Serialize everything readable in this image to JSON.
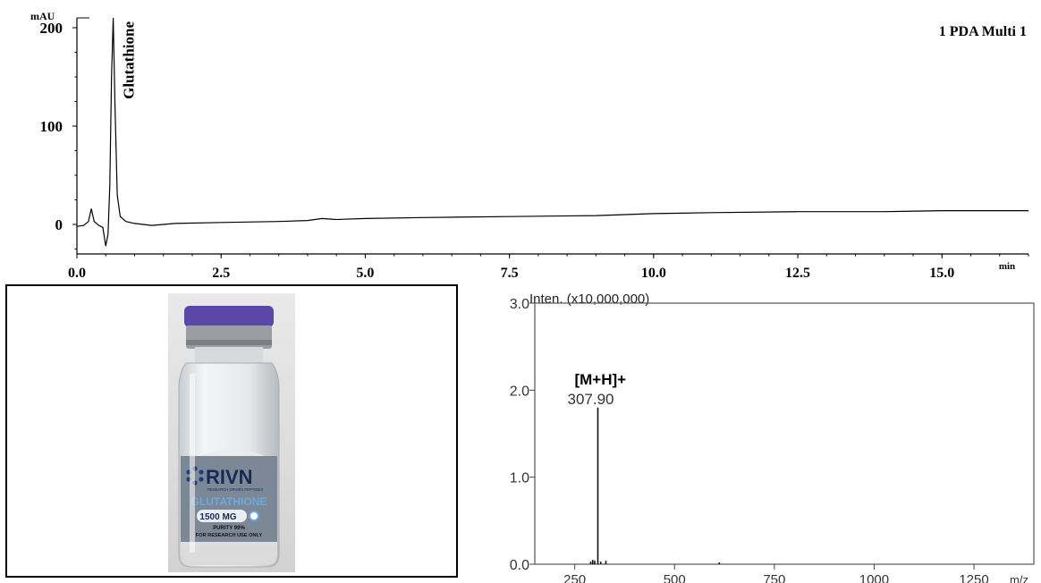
{
  "chart_data": [
    {
      "type": "line",
      "ylabel": "mAU",
      "xlabel": "min",
      "legend": "1 PDA Multi 1",
      "xlim": [
        0,
        16.5
      ],
      "ylim": [
        -30,
        210
      ],
      "x_ticks": [
        "0.0",
        "2.5",
        "5.0",
        "7.5",
        "10.0",
        "12.5",
        "15.0"
      ],
      "y_ticks": [
        "0",
        "100",
        "200"
      ],
      "annotations": [
        {
          "text": "Glutathione",
          "x": 0.55,
          "y": 210
        }
      ],
      "series": [
        {
          "x": [
            0.0,
            0.12,
            0.2,
            0.25,
            0.3,
            0.38,
            0.45,
            0.5,
            0.54,
            0.57,
            0.6,
            0.63,
            0.66,
            0.7,
            0.75,
            0.85,
            1.0,
            1.3,
            1.7,
            2.5,
            3.5,
            4.0,
            4.25,
            4.5,
            5.0,
            6.0,
            7.5,
            9.0,
            10.0,
            11.0,
            12.5,
            14.0,
            15.0,
            15.5,
            16.5
          ],
          "y": [
            -2,
            -1,
            3,
            16,
            3,
            -1,
            -3,
            -22,
            -10,
            40,
            150,
            210,
            120,
            30,
            8,
            3,
            1,
            -1,
            1,
            2,
            3,
            4,
            6,
            5,
            6,
            7,
            8,
            9,
            11,
            12,
            13,
            13,
            14,
            14,
            14
          ]
        }
      ]
    },
    {
      "type": "line",
      "ylabel": "Inten. (x10,000,000)",
      "xlabel": "m/z",
      "xlim": [
        150,
        1400
      ],
      "ylim": [
        0,
        3.0
      ],
      "x_ticks": [
        "250",
        "500",
        "750",
        "1000",
        "1250"
      ],
      "y_ticks": [
        "0.0",
        "1.0",
        "2.0",
        "3.0"
      ],
      "annotations": [
        {
          "text": "[M+H]+",
          "value": "307.90"
        }
      ],
      "series": [
        {
          "x": [
            290,
            295,
            300,
            307.9,
            315,
            328,
            612
          ],
          "y": [
            0.03,
            0.05,
            0.04,
            1.8,
            0.03,
            0.04,
            0.02
          ]
        }
      ]
    }
  ],
  "photo": {
    "brand": "RIVN",
    "tagline": "RESEARCH DRIVEN PEPTIDES",
    "product": "GLUTATHIONE",
    "dose": "1500 MG",
    "purity": "PURITY 99%",
    "disclaimer": "FOR RESEARCH USE ONLY",
    "cap_color": "#5a46a6",
    "label_color": "#7d8896",
    "accent_color": "#6ea8dc"
  }
}
